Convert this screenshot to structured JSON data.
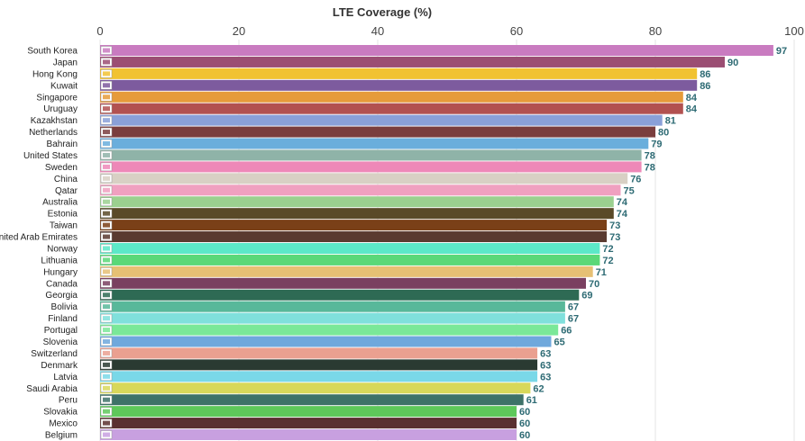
{
  "chart_data": {
    "type": "bar",
    "orientation": "horizontal",
    "title": "LTE Coverage (%)",
    "xlim": [
      0,
      100
    ],
    "ticks": [
      0,
      20,
      40,
      60,
      80,
      100
    ],
    "tick_position": "top",
    "grid": true,
    "categories": [
      "South Korea",
      "Japan",
      "Hong Kong",
      "Kuwait",
      "Singapore",
      "Uruguay",
      "Kazakhstan",
      "Netherlands",
      "Bahrain",
      "United States",
      "Sweden",
      "China",
      "Qatar",
      "Australia",
      "Estonia",
      "Taiwan",
      "United Arab Emirates",
      "Norway",
      "Lithuania",
      "Hungary",
      "Canada",
      "Georgia",
      "Bolivia",
      "Finland",
      "Portugal",
      "Slovenia",
      "Switzerland",
      "Denmark",
      "Latvia",
      "Saudi Arabia",
      "Peru",
      "Slovakia",
      "Mexico",
      "Belgium"
    ],
    "values": [
      97,
      90,
      86,
      86,
      84,
      84,
      81,
      80,
      79,
      78,
      78,
      76,
      75,
      74,
      74,
      73,
      73,
      72,
      72,
      71,
      70,
      69,
      67,
      67,
      66,
      65,
      63,
      63,
      63,
      62,
      61,
      60,
      60,
      60
    ],
    "colors": [
      "#c97bc0",
      "#9b4e73",
      "#f1c232",
      "#7d5b9e",
      "#e69b3a",
      "#b25150",
      "#8aa0d8",
      "#7a3e3e",
      "#6aaedc",
      "#8fb3a8",
      "#ee88b8",
      "#d8d0c4",
      "#f0a0c0",
      "#9bd08f",
      "#5a4a28",
      "#7a4018",
      "#5a3a30",
      "#5ce8c8",
      "#5ad878",
      "#e6c074",
      "#7a4060",
      "#2e6a54",
      "#58b89a",
      "#80e0dc",
      "#7ae898",
      "#6fa8dc",
      "#eaa090",
      "#2a3a32",
      "#7ad8e8",
      "#d8d85a",
      "#3e7268",
      "#5ec85a",
      "#5a3030",
      "#c8a0e0"
    ],
    "flags": [
      "south-korea-flag",
      "japan-flag",
      "hong-kong-flag",
      "kuwait-flag",
      "singapore-flag",
      "uruguay-flag",
      "kazakhstan-flag",
      "netherlands-flag",
      "bahrain-flag",
      "united-states-flag",
      "sweden-flag",
      "china-flag",
      "qatar-flag",
      "australia-flag",
      "estonia-flag",
      "taiwan-flag",
      "united-arab-emirates-flag",
      "norway-flag",
      "lithuania-flag",
      "hungary-flag",
      "canada-flag",
      "georgia-flag",
      "bolivia-flag",
      "finland-flag",
      "portugal-flag",
      "slovenia-flag",
      "switzerland-flag",
      "denmark-flag",
      "latvia-flag",
      "saudi-arabia-flag",
      "peru-flag",
      "slovakia-flag",
      "mexico-flag",
      "belgium-flag"
    ],
    "value_label_color": "#2e6b74"
  }
}
